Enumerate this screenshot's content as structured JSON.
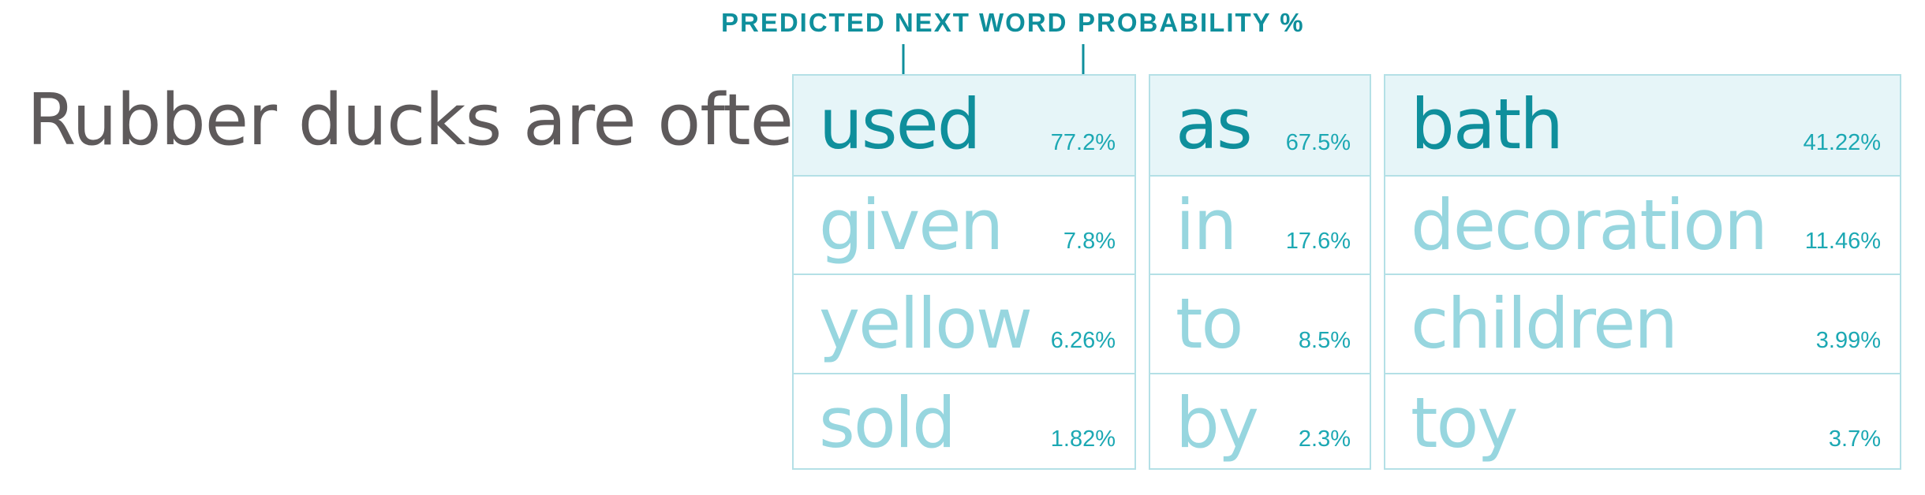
{
  "labels": {
    "word": "PREDICTED NEXT WORD",
    "probability": "PROBABILITY %"
  },
  "prompt": "Rubber ducks are often",
  "columns": [
    {
      "cells": [
        {
          "word": "used",
          "pct": "77.2%"
        },
        {
          "word": "given",
          "pct": "7.8%"
        },
        {
          "word": "yellow",
          "pct": "6.26%"
        },
        {
          "word": "sold",
          "pct": "1.82%"
        }
      ]
    },
    {
      "cells": [
        {
          "word": "as",
          "pct": "67.5%"
        },
        {
          "word": "in",
          "pct": "17.6%"
        },
        {
          "word": "to",
          "pct": "8.5%"
        },
        {
          "word": "by",
          "pct": "2.3%"
        }
      ]
    },
    {
      "cells": [
        {
          "word": "bath",
          "pct": "41.22%"
        },
        {
          "word": "decoration",
          "pct": "11.46%"
        },
        {
          "word": "children",
          "pct": "3.99%"
        },
        {
          "word": "toy",
          "pct": "3.7%"
        }
      ]
    }
  ],
  "colors": {
    "accent": "#0f8f9c",
    "muted": "#97d6df",
    "highlight_bg": "#e6f5f8",
    "border": "#b4e0e6",
    "prompt_text": "#5e5a5b"
  }
}
